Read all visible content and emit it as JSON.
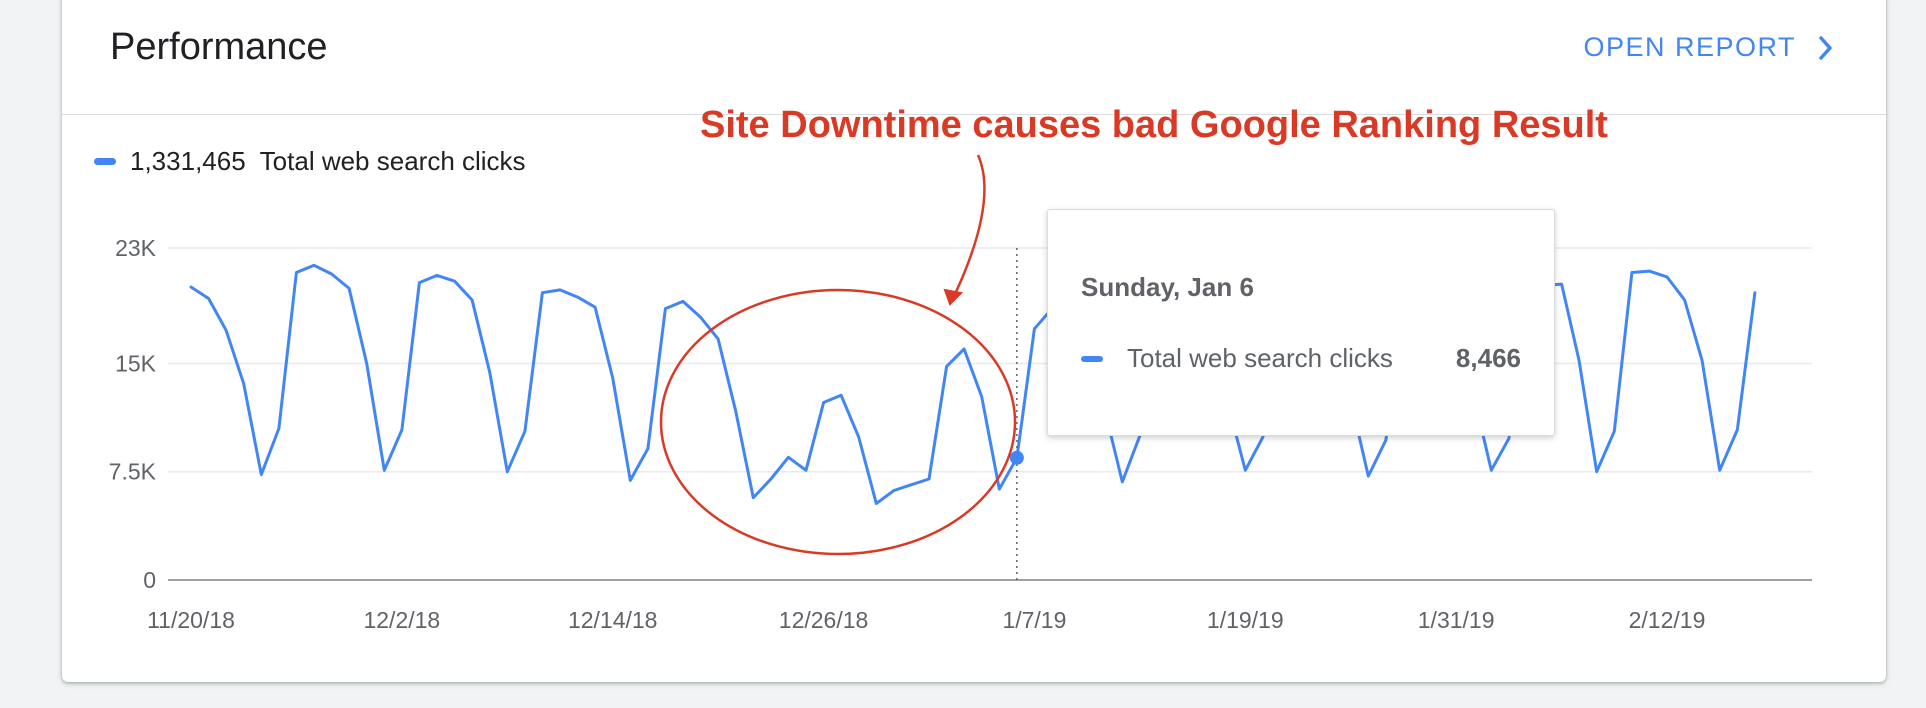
{
  "card": {
    "title": "Performance",
    "open_report_label": "OPEN REPORT"
  },
  "legend": {
    "total": "1,331,465",
    "label": "Total web search clicks"
  },
  "tooltip": {
    "date": "Sunday, Jan 6",
    "series_label": "Total web search clicks",
    "value": "8,466"
  },
  "annotation": {
    "text": "Site Downtime causes bad Google Ranking Result"
  },
  "colors": {
    "series": "#4285f4",
    "annotation": "#d93a25",
    "accent": "#4285f4"
  },
  "icons": {
    "open_report": "chevron-right-icon"
  },
  "chart_data": {
    "type": "line",
    "title": "",
    "xlabel": "",
    "ylabel": "",
    "ylim": [
      0,
      23000
    ],
    "yticks": [
      0,
      7500,
      15000,
      23000
    ],
    "ytick_labels": [
      "0",
      "7.5K",
      "15K",
      "23K"
    ],
    "xtick_labels": [
      "11/20/18",
      "12/2/18",
      "12/14/18",
      "12/26/18",
      "1/7/19",
      "1/19/19",
      "1/31/19",
      "2/12/19"
    ],
    "x_start": "2018-11-20",
    "x_end": "2019-02-19",
    "grid": true,
    "legend_position": "top-left",
    "series": [
      {
        "name": "Total web search clicks",
        "total": "1,331,465",
        "color": "#4285f4",
        "values": [
          20300,
          19500,
          17300,
          13600,
          7300,
          10500,
          21300,
          21800,
          21200,
          20200,
          15000,
          7600,
          10400,
          20600,
          21100,
          20700,
          19400,
          14400,
          7500,
          10300,
          19900,
          20100,
          19600,
          18900,
          14000,
          6900,
          9100,
          18800,
          19300,
          18200,
          16700,
          11700,
          5700,
          7000,
          8500,
          7600,
          12300,
          12800,
          9900,
          5300,
          6200,
          6600,
          7000,
          14800,
          16000,
          12700,
          6300,
          8466,
          17400,
          18800,
          18500,
          17500,
          11800,
          6800,
          10000,
          19500,
          20000,
          19600,
          18500,
          12300,
          7600,
          9900,
          19400,
          19900,
          19300,
          18200,
          12500,
          7200,
          9700,
          19300,
          19800,
          19200,
          18300,
          12800,
          7600,
          9800,
          20200,
          20400,
          20500,
          15200,
          7500,
          10300,
          21300,
          21400,
          21000,
          19400,
          15200,
          7600,
          10400,
          19900
        ]
      }
    ],
    "highlight": {
      "date": "2019-01-06",
      "value": 8466
    },
    "annotation_text": "Site Downtime causes bad Google Ranking Result"
  }
}
